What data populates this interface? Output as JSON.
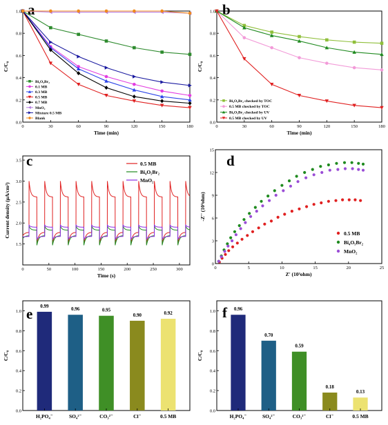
{
  "figure": {
    "panels": [
      "a",
      "b",
      "c",
      "d",
      "e",
      "f"
    ]
  },
  "chart_data": [
    {
      "panel": "a",
      "type": "line",
      "xlabel": "Time (min)",
      "ylabel": "C/C₀",
      "xlim": [
        0,
        180
      ],
      "ylim": [
        0,
        1.0
      ],
      "xticks": [
        0,
        30,
        60,
        90,
        120,
        150,
        180
      ],
      "yticks": [
        0.0,
        0.2,
        0.4,
        0.6,
        0.8,
        1.0
      ],
      "x": [
        0,
        30,
        60,
        90,
        120,
        150,
        180
      ],
      "legend_position": "bottom-left",
      "series": [
        {
          "name": "Bi₄O₅Br₂",
          "color": "#2e8b2e",
          "marker": "square",
          "values": [
            1.0,
            0.85,
            0.79,
            0.73,
            0.67,
            0.63,
            0.61
          ]
        },
        {
          "name": "0.1 MB",
          "color": "#e23ce0",
          "marker": "circle",
          "values": [
            1.0,
            0.68,
            0.5,
            0.41,
            0.34,
            0.28,
            0.24
          ]
        },
        {
          "name": "0.3 MB",
          "color": "#2b44e8",
          "marker": "triangle-up",
          "values": [
            1.0,
            0.67,
            0.48,
            0.37,
            0.29,
            0.23,
            0.2
          ]
        },
        {
          "name": "0.5 MB",
          "color": "#e02020",
          "marker": "triangle-down",
          "values": [
            1.0,
            0.53,
            0.34,
            0.24,
            0.19,
            0.15,
            0.13
          ]
        },
        {
          "name": "0.7 MB",
          "color": "#000000",
          "marker": "diamond",
          "values": [
            1.0,
            0.65,
            0.44,
            0.31,
            0.23,
            0.19,
            0.17
          ]
        },
        {
          "name": "MnO₂",
          "color": "#b57ae0",
          "marker": "triangle-left",
          "values": [
            1.0,
            0.99,
            0.99,
            0.99,
            0.99,
            0.99,
            0.98
          ]
        },
        {
          "name": "Mixture 0.5 MB",
          "color": "#1a1aa0",
          "marker": "triangle-right",
          "values": [
            1.0,
            0.72,
            0.59,
            0.49,
            0.41,
            0.36,
            0.33
          ]
        },
        {
          "name": "Blank",
          "color": "#f08a1c",
          "marker": "hexagon",
          "values": [
            1.0,
            1.0,
            1.0,
            1.0,
            1.0,
            1.0,
            0.98
          ]
        }
      ]
    },
    {
      "panel": "b",
      "type": "line",
      "xlabel": "Time (min)",
      "ylabel": "C/C₀",
      "xlim": [
        0,
        180
      ],
      "ylim": [
        0,
        1.0
      ],
      "xticks": [
        0,
        30,
        60,
        90,
        120,
        150,
        180
      ],
      "yticks": [
        0.0,
        0.2,
        0.4,
        0.6,
        0.8,
        1.0
      ],
      "x": [
        0,
        30,
        60,
        90,
        120,
        150,
        180
      ],
      "legend_position": "bottom-left",
      "series": [
        {
          "name": "Bi₄O₅Br₂ checked by TOC",
          "color": "#8fbf3a",
          "marker": "square",
          "values": [
            1.0,
            0.87,
            0.81,
            0.77,
            0.74,
            0.72,
            0.71
          ]
        },
        {
          "name": "0.5 MB checked by TOC",
          "color": "#f29ad8",
          "marker": "circle",
          "values": [
            1.0,
            0.76,
            0.67,
            0.58,
            0.53,
            0.49,
            0.47
          ]
        },
        {
          "name": "Bi₄O₅Br₂ checked by UV",
          "color": "#1f8a1f",
          "marker": "triangle-up",
          "values": [
            1.0,
            0.85,
            0.78,
            0.73,
            0.67,
            0.63,
            0.61
          ]
        },
        {
          "name": "0.5 MB checked by UV",
          "color": "#e02020",
          "marker": "triangle-down",
          "values": [
            1.0,
            0.57,
            0.34,
            0.24,
            0.19,
            0.15,
            0.13
          ]
        }
      ]
    },
    {
      "panel": "c",
      "type": "line",
      "xlabel": "Time (s)",
      "ylabel": "Current density (μA/cm²)",
      "xlim": [
        0,
        320
      ],
      "ylim": [
        1.0,
        3.6
      ],
      "xticks": [
        0,
        50,
        100,
        150,
        200,
        250,
        300
      ],
      "yticks": [
        1.5,
        2.0,
        2.5,
        3.0,
        3.5
      ],
      "period": 30,
      "cycles": 11,
      "legend_position": "top-right",
      "series": [
        {
          "name": "0.5 MB",
          "color": "#e02020",
          "on_peak": 3.0,
          "on_steady": 2.62,
          "off_dip": 1.5,
          "off_steady": 1.78
        },
        {
          "name": "Bi₄O₅Br₂",
          "color": "#1f8a1f",
          "on_peak": 1.93,
          "on_steady": 1.83,
          "off_dip": 1.47,
          "off_steady": 1.7
        },
        {
          "name": "MnO₂",
          "color": "#8a2be2",
          "on_peak": 1.95,
          "on_steady": 1.9,
          "off_dip": 1.62,
          "off_steady": 1.68
        }
      ]
    },
    {
      "panel": "d",
      "type": "scatter",
      "xlabel": "Z' (10³ohm)",
      "ylabel": "-Z'' (10³ohm)",
      "xlim": [
        0,
        25
      ],
      "ylim": [
        0,
        15
      ],
      "xticks": [
        0,
        5,
        10,
        15,
        20,
        25
      ],
      "yticks": [
        0,
        3,
        6,
        9,
        12,
        15
      ],
      "legend_position": "bottom-right",
      "series": [
        {
          "name": "0.5 MB",
          "color": "#e02020",
          "x": [
            0.6,
            1.0,
            1.5,
            2.0,
            2.6,
            3.3,
            4.0,
            4.8,
            5.6,
            6.5,
            7.4,
            8.4,
            9.4,
            10.4,
            11.5,
            12.6,
            13.7,
            14.8,
            15.9,
            17.0,
            18.1,
            19.1,
            20.1,
            21.0,
            21.8
          ],
          "y": [
            0.2,
            0.7,
            1.2,
            1.7,
            2.2,
            2.7,
            3.2,
            3.7,
            4.2,
            4.7,
            5.2,
            5.6,
            6.1,
            6.5,
            6.9,
            7.2,
            7.5,
            7.8,
            8.0,
            8.2,
            8.3,
            8.4,
            8.4,
            8.4,
            8.3
          ]
        },
        {
          "name": "Bi₄O₅Br₂",
          "color": "#1f8a1f",
          "x": [
            0.5,
            0.9,
            1.3,
            1.8,
            2.3,
            2.9,
            3.6,
            4.3,
            5.1,
            6.0,
            6.9,
            7.9,
            8.9,
            10.0,
            11.1,
            12.2,
            13.4,
            14.6,
            15.8,
            17.0,
            18.2,
            19.4,
            20.5,
            21.5,
            22.2
          ],
          "y": [
            0.3,
            1.0,
            1.8,
            2.6,
            3.4,
            4.2,
            5.0,
            5.8,
            6.6,
            7.4,
            8.2,
            8.9,
            9.6,
            10.3,
            10.9,
            11.5,
            12.0,
            12.4,
            12.8,
            13.0,
            13.2,
            13.3,
            13.3,
            13.2,
            13.1
          ]
        },
        {
          "name": "MnO₂",
          "color": "#9a4dd6",
          "x": [
            0.5,
            0.9,
            1.4,
            1.9,
            2.5,
            3.1,
            3.8,
            4.5,
            5.3,
            6.2,
            7.1,
            8.1,
            9.1,
            10.2,
            11.3,
            12.4,
            13.6,
            14.8,
            16.0,
            17.2,
            18.4,
            19.5,
            20.6,
            21.5,
            22.2
          ],
          "y": [
            0.3,
            0.9,
            1.6,
            2.3,
            3.0,
            3.8,
            4.6,
            5.4,
            6.2,
            6.9,
            7.6,
            8.3,
            9.0,
            9.6,
            10.2,
            10.8,
            11.3,
            11.7,
            12.0,
            12.3,
            12.4,
            12.5,
            12.5,
            12.4,
            12.3
          ]
        }
      ]
    },
    {
      "panel": "e",
      "type": "bar",
      "ylabel": "C/C₀",
      "ylim": [
        0,
        1.1
      ],
      "yticks": [
        0.0,
        0.2,
        0.4,
        0.6,
        0.8,
        1.0
      ],
      "categories": [
        "H₂PO₄⁻",
        "SO₄²⁻",
        "CO₃²⁻",
        "Cl⁻",
        "0.5 MB"
      ],
      "values": [
        0.99,
        0.96,
        0.95,
        0.9,
        0.92
      ],
      "value_labels": [
        "0.99",
        "0.96",
        "0.95",
        "0.90",
        "0.92"
      ],
      "colors": [
        "#1f2a7a",
        "#1e5f86",
        "#3f8f26",
        "#8a8a1e",
        "#ece271"
      ]
    },
    {
      "panel": "f",
      "type": "bar",
      "ylabel": "C/C₀",
      "ylim": [
        0,
        1.1
      ],
      "yticks": [
        0.0,
        0.2,
        0.4,
        0.6,
        0.8,
        1.0
      ],
      "categories": [
        "H₂PO₄⁻",
        "SO₄²⁻",
        "CO₃²⁻",
        "Cl⁻",
        "0.5 MB"
      ],
      "values": [
        0.96,
        0.7,
        0.59,
        0.18,
        0.13
      ],
      "value_labels": [
        "0.96",
        "0.70",
        "0.59",
        "0.18",
        "0.13"
      ],
      "colors": [
        "#1f2a7a",
        "#1e5f86",
        "#3f8f26",
        "#8a8a1e",
        "#ece271"
      ]
    }
  ]
}
